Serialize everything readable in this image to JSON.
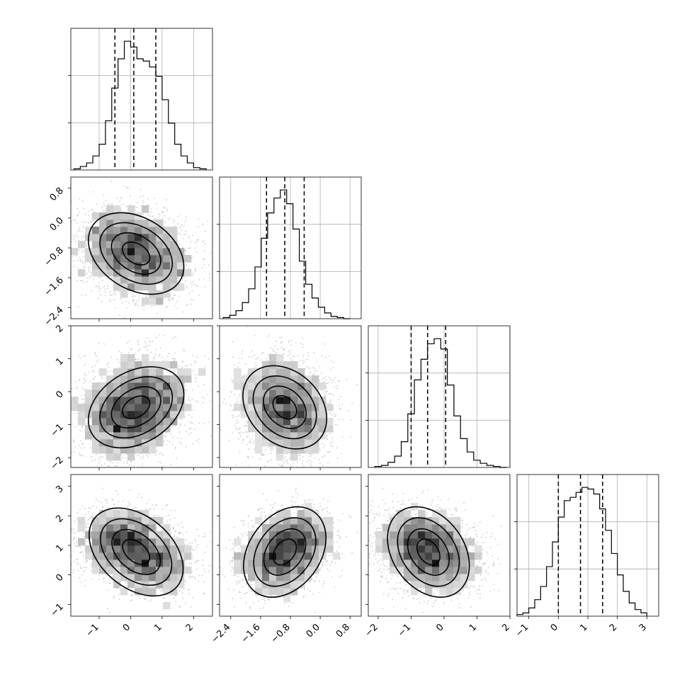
{
  "chart_data": {
    "type": "corner",
    "parameters": [
      {
        "xlim": [
          -1.9,
          2.6
        ],
        "xticks": [
          -1,
          0,
          1,
          2
        ],
        "xtick_labels": [
          "−1",
          "0",
          "1",
          "2"
        ],
        "quantiles": [
          -0.5,
          0.1,
          0.8
        ],
        "hist_bins": [
          -1.8,
          -1.6,
          -1.4,
          -1.2,
          -1.0,
          -0.8,
          -0.6,
          -0.4,
          -0.2,
          0.0,
          0.2,
          0.4,
          0.6,
          0.8,
          1.0,
          1.2,
          1.4,
          1.6,
          1.8,
          2.0,
          2.2,
          2.4
        ],
        "hist_counts": [
          1,
          3,
          6,
          12,
          22,
          42,
          70,
          95,
          110,
          105,
          95,
          93,
          88,
          80,
          60,
          40,
          22,
          12,
          6,
          2,
          1
        ]
      },
      {
        "xlim": [
          -2.7,
          1.1
        ],
        "xticks": [
          -2.4,
          -1.6,
          -0.8,
          0.0,
          0.8
        ],
        "xtick_labels": [
          "−2.4",
          "−1.6",
          "−0.8",
          "0.0",
          "0.8"
        ],
        "ylim": [
          -2.7,
          1.1
        ],
        "yticks": [
          -2.4,
          -1.6,
          -0.8,
          0.0,
          0.8
        ],
        "ytick_labels": [
          "−2.4",
          "−1.6",
          "−0.8",
          "0.0",
          "0.8"
        ],
        "quantiles": [
          -1.44,
          -0.95,
          -0.43
        ],
        "hist_bins": [
          -2.6,
          -2.43,
          -2.26,
          -2.09,
          -1.92,
          -1.75,
          -1.58,
          -1.41,
          -1.24,
          -1.07,
          -0.9,
          -0.73,
          -0.56,
          -0.39,
          -0.22,
          -0.05,
          0.12,
          0.29,
          0.46,
          0.63,
          0.8
        ],
        "hist_counts": [
          1,
          3,
          7,
          14,
          26,
          45,
          70,
          92,
          105,
          112,
          100,
          78,
          50,
          30,
          18,
          10,
          5,
          2,
          1,
          0
        ]
      },
      {
        "xlim": [
          -2.3,
          2.0
        ],
        "xticks": [
          -2,
          -1,
          0,
          1,
          2
        ],
        "xtick_labels": [
          "−2",
          "−1",
          "0",
          "1",
          "2"
        ],
        "ylim": [
          -2.3,
          2.0
        ],
        "yticks": [
          -2,
          -1,
          0,
          1,
          2
        ],
        "ytick_labels": [
          "−2",
          "−1",
          "0",
          "1",
          "2"
        ],
        "quantiles": [
          -1.0,
          -0.5,
          0.05
        ],
        "hist_bins": [
          -2.1,
          -1.9,
          -1.7,
          -1.5,
          -1.3,
          -1.1,
          -0.9,
          -0.7,
          -0.5,
          -0.3,
          -0.1,
          0.1,
          0.3,
          0.5,
          0.7,
          0.9,
          1.1,
          1.3,
          1.5,
          1.7,
          1.9
        ],
        "hist_counts": [
          1,
          2,
          5,
          11,
          25,
          52,
          85,
          105,
          120,
          125,
          115,
          80,
          50,
          28,
          15,
          7,
          4,
          2,
          1,
          0
        ]
      },
      {
        "xlim": [
          -1.4,
          3.4
        ],
        "xticks": [
          -1,
          0,
          1,
          2,
          3
        ],
        "xtick_labels": [
          "−1",
          "0",
          "1",
          "2",
          "3"
        ],
        "ylim": [
          -1.4,
          3.4
        ],
        "yticks": [
          -1,
          0,
          1,
          2,
          3
        ],
        "ytick_labels": [
          "−1",
          "0",
          "1",
          "2",
          "3"
        ],
        "quantiles": [
          0.0,
          0.75,
          1.5
        ],
        "hist_bins": [
          -1.4,
          -1.2,
          -1.0,
          -0.8,
          -0.6,
          -0.4,
          -0.2,
          0.0,
          0.2,
          0.4,
          0.6,
          0.8,
          1.0,
          1.2,
          1.4,
          1.6,
          1.8,
          2.0,
          2.2,
          2.4,
          2.6,
          2.8,
          3.0
        ],
        "hist_counts": [
          1,
          2,
          5,
          10,
          18,
          30,
          45,
          60,
          70,
          72,
          75,
          78,
          77,
          74,
          65,
          52,
          38,
          25,
          15,
          8,
          4,
          2
        ]
      }
    ],
    "grid": true
  }
}
